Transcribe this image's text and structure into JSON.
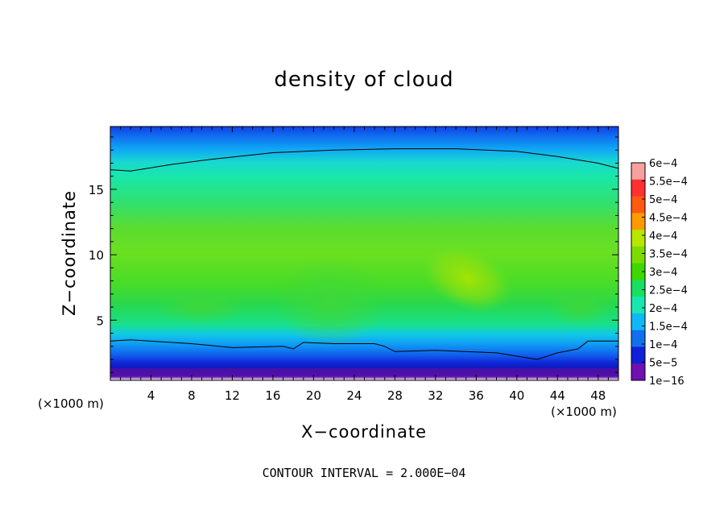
{
  "chart_data": {
    "type": "heatmap",
    "title": "density of cloud",
    "xlabel": "X−coordinate",
    "ylabel": "Z−coordinate",
    "x_unit_left": "(×1000 m)",
    "x_unit_right": "(×1000 m)",
    "footer": "CONTOUR INTERVAL = 2.000E−04",
    "xlim": [
      0,
      50
    ],
    "ylim": [
      0.4,
      19.8
    ],
    "xticks": [
      4,
      8,
      12,
      16,
      20,
      24,
      28,
      32,
      36,
      40,
      44,
      48
    ],
    "yticks": [
      5,
      10,
      15
    ],
    "colorbar": {
      "labels": [
        "6e−4",
        "5.5e−4",
        "5e−4",
        "4.5e−4",
        "4e−4",
        "3.5e−4",
        "3e−4",
        "2.5e−4",
        "2e−4",
        "1.5e−4",
        "1e−4",
        "5e−5",
        "1e−16"
      ],
      "colors": [
        "#f7a0a0",
        "#ff3030",
        "#ff5a10",
        "#ff9a00",
        "#b8e600",
        "#7cdc00",
        "#3cd800",
        "#18e060",
        "#18e8b0",
        "#10b8f8",
        "#1070f0",
        "#1020d8",
        "#7010b0"
      ]
    },
    "contour_lines": [
      {
        "level": "2e−4 (upper)",
        "x": [
          0,
          2,
          6,
          10,
          16,
          22,
          28,
          34,
          40,
          44,
          48,
          50
        ],
        "z": [
          16.5,
          16.4,
          16.9,
          17.3,
          17.8,
          18.0,
          18.1,
          18.1,
          17.9,
          17.5,
          17.0,
          16.6
        ]
      },
      {
        "level": "2e−4 (lower)",
        "x": [
          0,
          2,
          8,
          12,
          17,
          18,
          19,
          22,
          26,
          27,
          28,
          32,
          38,
          42,
          44,
          46,
          47,
          50
        ],
        "z": [
          3.4,
          3.5,
          3.2,
          2.9,
          3.0,
          2.8,
          3.3,
          3.2,
          3.2,
          3.0,
          2.6,
          2.7,
          2.5,
          2.0,
          2.5,
          2.8,
          3.4,
          3.4
        ]
      }
    ]
  }
}
